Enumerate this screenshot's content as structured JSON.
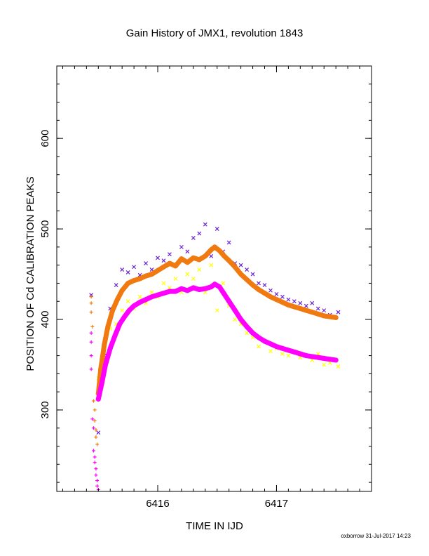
{
  "chart_data": {
    "type": "scatter",
    "title": "Gain History of JMX1, revolution 1843",
    "xlabel": "TIME IN IJD",
    "ylabel": "POSITION OF Cd CALIBRATION PEAKS",
    "xlim": [
      6415.15,
      6417.8
    ],
    "ylim": [
      210,
      680
    ],
    "x_ticks": [
      6416,
      6417
    ],
    "x_tick_labels": [
      "6416",
      "6417"
    ],
    "y_ticks": [
      300,
      400,
      500,
      600
    ],
    "y_tick_labels": [
      "300",
      "400",
      "500",
      "600"
    ],
    "grid": false,
    "legend": "none",
    "footer": "oxborrow 31-Jul-2017 14:23",
    "series": [
      {
        "color": "#6a22d8",
        "marker": "x",
        "x": [
          6415.44,
          6415.5,
          6415.55,
          6415.6,
          6415.65,
          6415.7,
          6415.75,
          6415.8,
          6415.85,
          6415.9,
          6415.95,
          6416.0,
          6416.05,
          6416.1,
          6416.15,
          6416.2,
          6416.25,
          6416.3,
          6416.35,
          6416.4,
          6416.45,
          6416.5,
          6416.55,
          6416.6,
          6416.65,
          6416.7,
          6416.75,
          6416.8,
          6416.85,
          6416.9,
          6416.95,
          6417.0,
          6417.05,
          6417.1,
          6417.15,
          6417.2,
          6417.25,
          6417.3,
          6417.35,
          6417.4,
          6417.45,
          6417.52
        ],
        "y": [
          427,
          275,
          360,
          412,
          438,
          455,
          452,
          458,
          449,
          462,
          455,
          468,
          465,
          472,
          460,
          480,
          475,
          490,
          495,
          505,
          470,
          500,
          475,
          485,
          462,
          460,
          455,
          450,
          440,
          438,
          432,
          428,
          425,
          422,
          420,
          418,
          415,
          418,
          412,
          410,
          405,
          408
        ]
      },
      {
        "color": "#ffff00",
        "marker": "x",
        "x": [
          6415.5,
          6415.55,
          6415.6,
          6415.65,
          6415.7,
          6415.75,
          6415.8,
          6415.85,
          6415.9,
          6415.95,
          6416.0,
          6416.05,
          6416.1,
          6416.15,
          6416.2,
          6416.25,
          6416.3,
          6416.35,
          6416.4,
          6416.45,
          6416.5,
          6416.55,
          6416.6,
          6416.65,
          6416.7,
          6416.75,
          6416.8,
          6416.85,
          6416.9,
          6416.95,
          6417.0,
          6417.05,
          6417.1,
          6417.15,
          6417.2,
          6417.25,
          6417.3,
          6417.35,
          6417.4,
          6417.45,
          6417.52
        ],
        "y": [
          335,
          365,
          390,
          395,
          410,
          420,
          412,
          425,
          418,
          430,
          425,
          440,
          435,
          445,
          430,
          450,
          445,
          455,
          430,
          460,
          410,
          440,
          415,
          400,
          395,
          385,
          380,
          370,
          375,
          365,
          368,
          362,
          360,
          365,
          358,
          360,
          355,
          362,
          350,
          352,
          348
        ]
      },
      {
        "color": "#f07a10",
        "marker": "curve",
        "x": [
          6415.5,
          6415.52,
          6415.55,
          6415.58,
          6415.62,
          6415.66,
          6415.7,
          6415.75,
          6415.8,
          6415.85,
          6415.9,
          6415.95,
          6416.0,
          6416.05,
          6416.1,
          6416.15,
          6416.2,
          6416.25,
          6416.3,
          6416.35,
          6416.4,
          6416.45,
          6416.48,
          6416.52,
          6416.56,
          6416.6,
          6416.65,
          6416.7,
          6416.75,
          6416.8,
          6416.85,
          6416.9,
          6416.95,
          6417.0,
          6417.05,
          6417.1,
          6417.15,
          6417.2,
          6417.25,
          6417.3,
          6417.35,
          6417.4,
          6417.45,
          6417.5
        ],
        "y": [
          318,
          345,
          372,
          392,
          410,
          422,
          432,
          440,
          443,
          445,
          448,
          450,
          454,
          458,
          462,
          459,
          467,
          463,
          468,
          466,
          470,
          477,
          480,
          476,
          470,
          465,
          458,
          450,
          444,
          438,
          433,
          429,
          425,
          422,
          419,
          416,
          414,
          412,
          410,
          408,
          406,
          404,
          403,
          402
        ]
      },
      {
        "color": "#ff00ff",
        "marker": "curve",
        "x": [
          6415.5,
          6415.53,
          6415.56,
          6415.6,
          6415.64,
          6415.68,
          6415.72,
          6415.76,
          6415.8,
          6415.85,
          6415.9,
          6415.95,
          6416.0,
          6416.05,
          6416.1,
          6416.15,
          6416.2,
          6416.25,
          6416.3,
          6416.35,
          6416.4,
          6416.45,
          6416.48,
          6416.52,
          6416.56,
          6416.6,
          6416.65,
          6416.7,
          6416.75,
          6416.8,
          6416.85,
          6416.9,
          6416.95,
          6417.0,
          6417.05,
          6417.1,
          6417.15,
          6417.2,
          6417.25,
          6417.3,
          6417.35,
          6417.4,
          6417.45,
          6417.5
        ],
        "y": [
          312,
          330,
          350,
          368,
          382,
          395,
          403,
          410,
          415,
          419,
          422,
          425,
          427,
          429,
          431,
          431,
          434,
          432,
          435,
          433,
          434,
          436,
          439,
          436,
          428,
          420,
          410,
          400,
          392,
          385,
          380,
          376,
          373,
          370,
          368,
          366,
          364,
          362,
          360,
          359,
          358,
          357,
          356,
          355
        ]
      },
      {
        "color": "#f07a10",
        "marker": "+",
        "x": [
          6415.44,
          6415.44,
          6415.44,
          6415.45,
          6415.46,
          6415.47,
          6415.47,
          6415.48,
          6415.48,
          6415.49
        ],
        "y": [
          425,
          418,
          408,
          392,
          310,
          300,
          288,
          278,
          270,
          262
        ]
      },
      {
        "color": "#ff00ff",
        "marker": "+",
        "x": [
          6415.44,
          6415.44,
          6415.44,
          6415.44,
          6415.45,
          6415.46,
          6415.46,
          6415.47,
          6415.47,
          6415.48,
          6415.48,
          6415.49,
          6415.49,
          6415.5
        ],
        "y": [
          385,
          375,
          360,
          345,
          290,
          280,
          255,
          248,
          242,
          235,
          228,
          222,
          216,
          212
        ]
      }
    ]
  }
}
